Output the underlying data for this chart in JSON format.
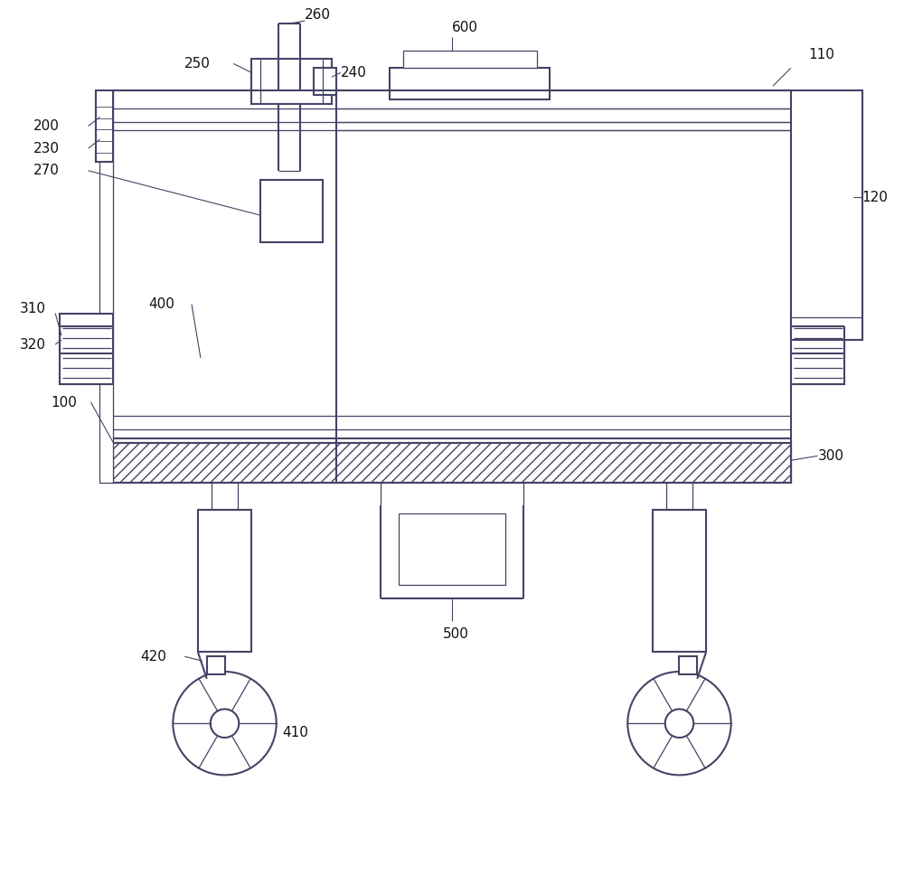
{
  "bg_color": "#ffffff",
  "lc": "#444466",
  "lw": 1.5,
  "tlw": 0.9,
  "label_fs": 11,
  "label_color": "#111111"
}
